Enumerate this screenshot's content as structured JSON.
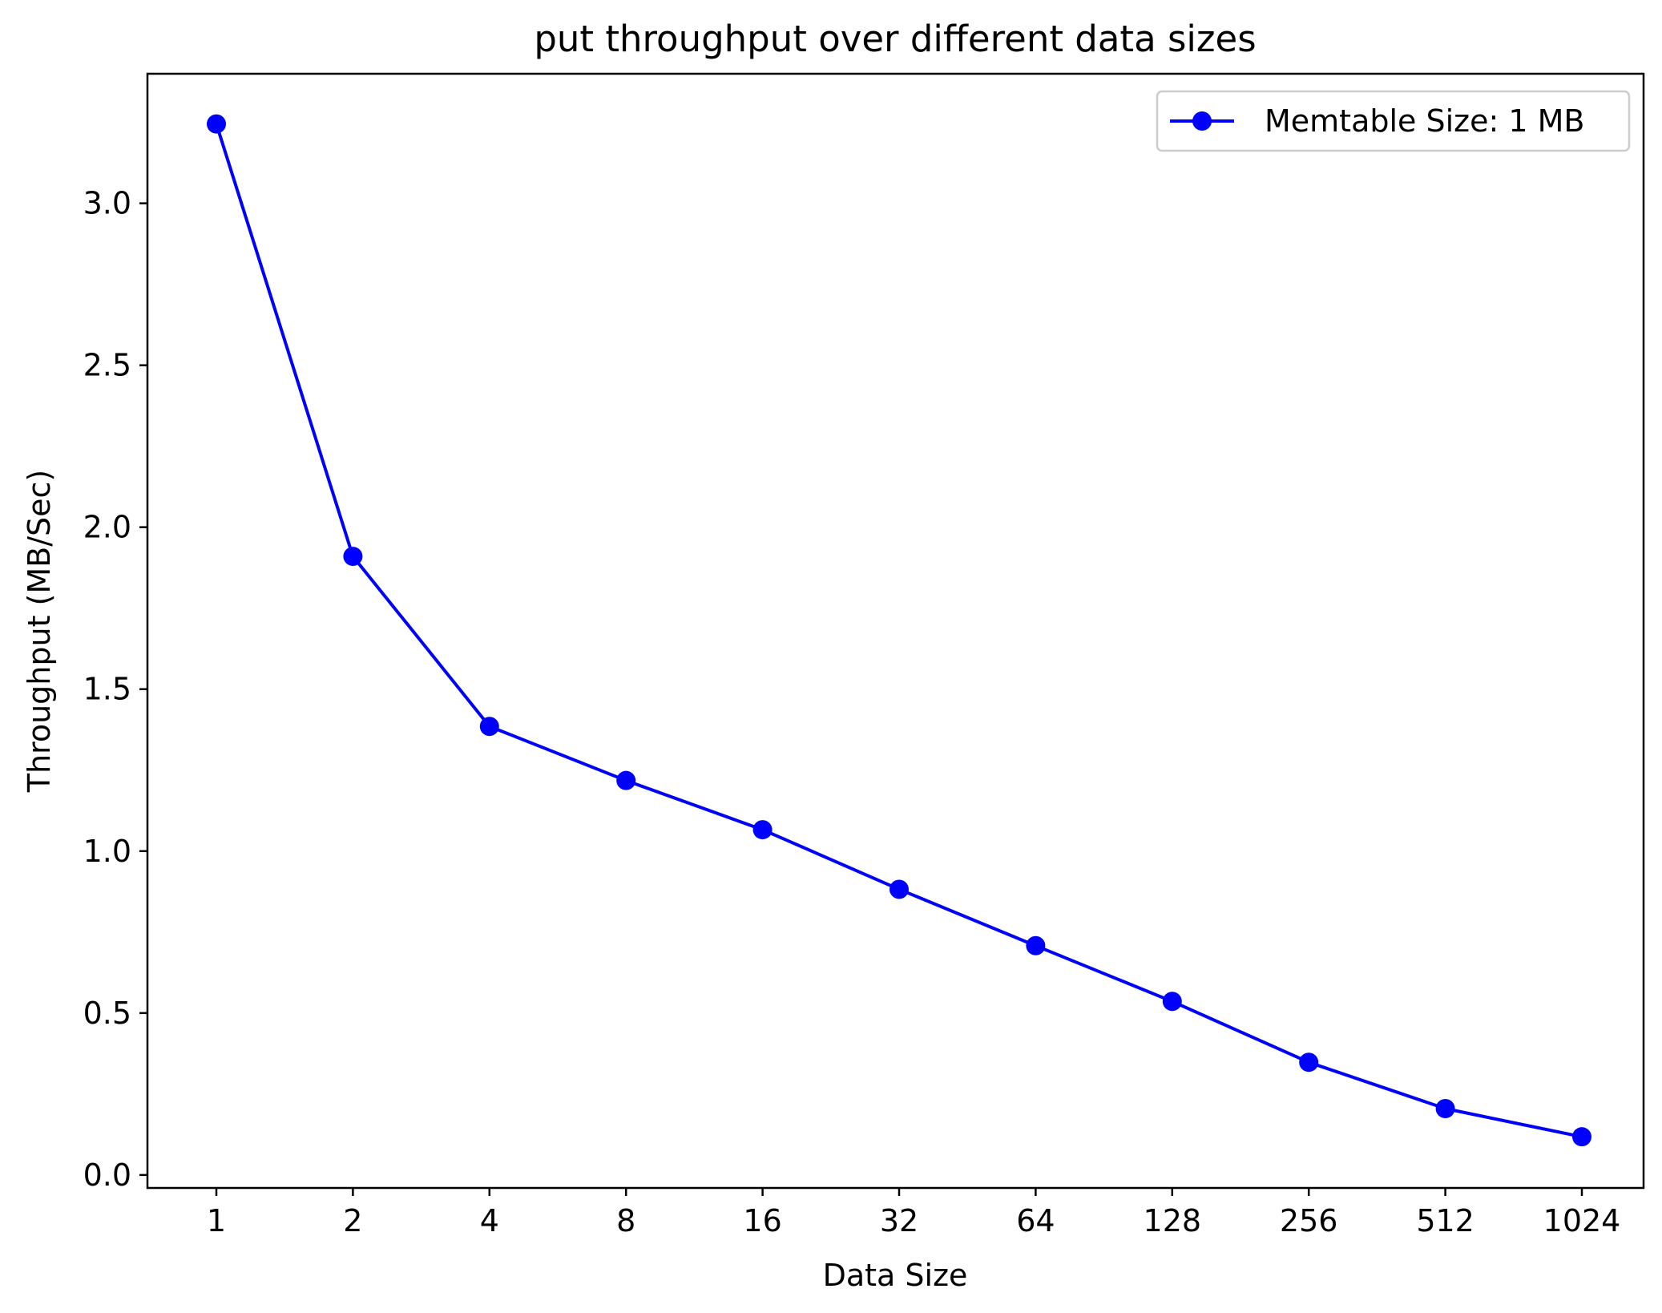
{
  "chart_data": {
    "type": "line",
    "title": "put throughput over different data sizes",
    "xlabel": "Data Size",
    "ylabel": "Throughput (MB/Sec)",
    "categories": [
      "1",
      "2",
      "4",
      "8",
      "16",
      "32",
      "64",
      "128",
      "256",
      "512",
      "1024"
    ],
    "series": [
      {
        "name": "Memtable Size: 1 MB",
        "color": "#0000ff",
        "marker": "circle",
        "values": [
          3.245,
          1.91,
          1.385,
          1.218,
          1.066,
          0.882,
          0.708,
          0.536,
          0.348,
          0.205,
          0.118
        ]
      }
    ],
    "y_ticks": [
      0.0,
      0.5,
      1.0,
      1.5,
      2.0,
      2.5,
      3.0
    ],
    "y_tick_labels": [
      "0.0",
      "0.5",
      "1.0",
      "1.5",
      "2.0",
      "2.5",
      "3.0"
    ],
    "ylim": [
      -0.04,
      3.4
    ],
    "grid": false,
    "legend_position": "top-right"
  }
}
